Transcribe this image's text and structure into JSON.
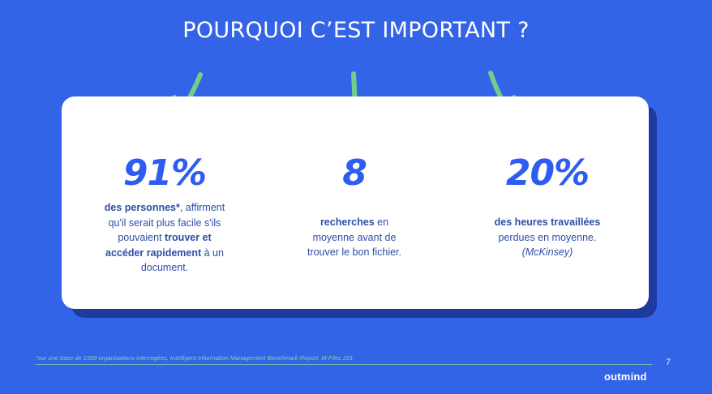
{
  "title": "POURQUOI C’EST IMPORTANT ?",
  "stats": [
    {
      "value": "91%",
      "lines": [
        [
          {
            "t": "des personnes*",
            "b": true
          },
          {
            "t": ", affirment",
            "b": false
          }
        ],
        [
          {
            "t": "qu'il serait plus facile s'ils",
            "b": false
          }
        ],
        [
          {
            "t": "pouvaient ",
            "b": false
          },
          {
            "t": "trouver et",
            "b": true
          }
        ],
        [
          {
            "t": "accéder rapidement",
            "b": true
          },
          {
            "t": " à un",
            "b": false
          }
        ],
        [
          {
            "t": "document.",
            "b": false
          }
        ]
      ]
    },
    {
      "value": "8",
      "lines": [
        [
          {
            "t": "recherches",
            "b": true
          },
          {
            "t": " en",
            "b": false
          }
        ],
        [
          {
            "t": "moyenne avant de",
            "b": false
          }
        ],
        [
          {
            "t": "trouver le bon fichier.",
            "b": false
          }
        ]
      ]
    },
    {
      "value": "20%",
      "lines": [
        [
          {
            "t": "des heures travaillées",
            "b": true
          }
        ],
        [
          {
            "t": "perdues en moyenne.",
            "b": false
          }
        ],
        [
          {
            "t": "(McKinsey)",
            "b": false,
            "i": true
          }
        ]
      ]
    }
  ],
  "footnote": "*sur une base de 1500 organisations interrogées, Intelligent Information Management Benchmark Report, M-Files 201",
  "page_number": "7",
  "logo": "outmind",
  "colors": {
    "background": "#3363e6",
    "card": "#ffffff",
    "accent_green": "#6fcf8a",
    "number_blue": "#2e5cf0",
    "text_blue": "#2d4ea8"
  },
  "icons": [
    "arrow-down-left-icon",
    "arrow-down-icon",
    "arrow-down-right-icon"
  ]
}
